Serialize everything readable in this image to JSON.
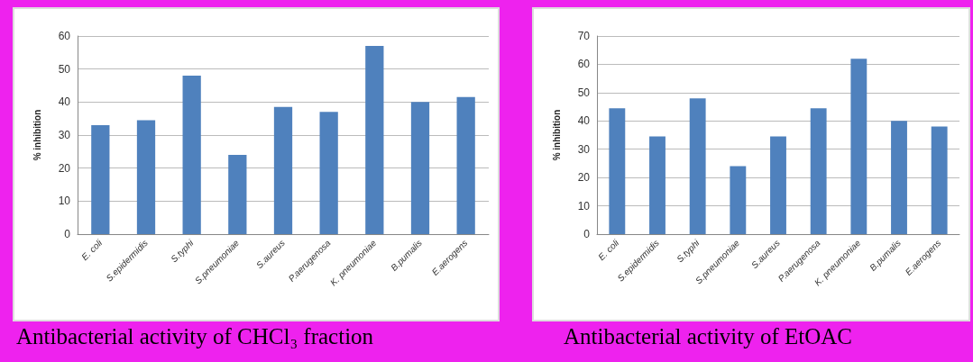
{
  "chart_data": [
    {
      "type": "bar",
      "ylabel": "% inhibition",
      "categories": [
        "E. coli",
        "S.epidermidis",
        "S.typhi",
        "S.pneumoniae",
        "S.aureus",
        "P.aerugenosa",
        "K. pneumoniae",
        "B.pumalis",
        "E.aerogens"
      ],
      "values": [
        33,
        34.5,
        48,
        24,
        38.5,
        37,
        57,
        40,
        41.5
      ],
      "color": "#4f81bd",
      "ylim": [
        0,
        60
      ],
      "yticks": [
        0,
        10,
        20,
        30,
        40,
        50,
        60
      ],
      "grid": "y",
      "annotations": [
        "Antibacterial activity of CHCl₃ fraction"
      ]
    },
    {
      "type": "bar",
      "ylabel": "% inhibition",
      "categories": [
        "E. coli",
        "S.epidermidis",
        "S.typhi",
        "S.pneumoniae",
        "S.aureus",
        "P.aerugenosa",
        "K. pneumoniae",
        "B.pumalis",
        "E.aerogens"
      ],
      "values": [
        44.5,
        34.5,
        48,
        24,
        34.5,
        44.5,
        62,
        40,
        38
      ],
      "color": "#4f81bd",
      "ylim": [
        0,
        70
      ],
      "yticks": [
        0,
        10,
        20,
        30,
        40,
        50,
        60,
        70
      ],
      "grid": "y",
      "annotations": [
        "Antibacterial activity of EtOAC"
      ]
    }
  ]
}
